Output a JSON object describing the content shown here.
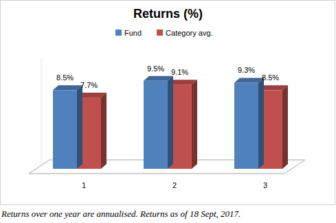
{
  "chart_data": {
    "type": "bar",
    "title": "Returns (%)",
    "categories": [
      "1",
      "2",
      "3"
    ],
    "series": [
      {
        "name": "Fund",
        "color": "#4f81bd",
        "values": [
          8.5,
          9.5,
          9.3
        ],
        "value_labels": [
          "8.5%",
          "9.5%",
          "9.3%"
        ]
      },
      {
        "name": "Category avg.",
        "color": "#c0504d",
        "values": [
          7.7,
          9.1,
          8.5
        ],
        "value_labels": [
          "7.7%",
          "9.1%",
          "8.5%"
        ]
      }
    ],
    "ylim": [
      0,
      12
    ],
    "tick_labels": false,
    "grid": false,
    "legend": "top",
    "data_labels": true,
    "annotations": [
      "Returns over one year are annualised. Returns as of 18 Sept, 2017."
    ]
  }
}
